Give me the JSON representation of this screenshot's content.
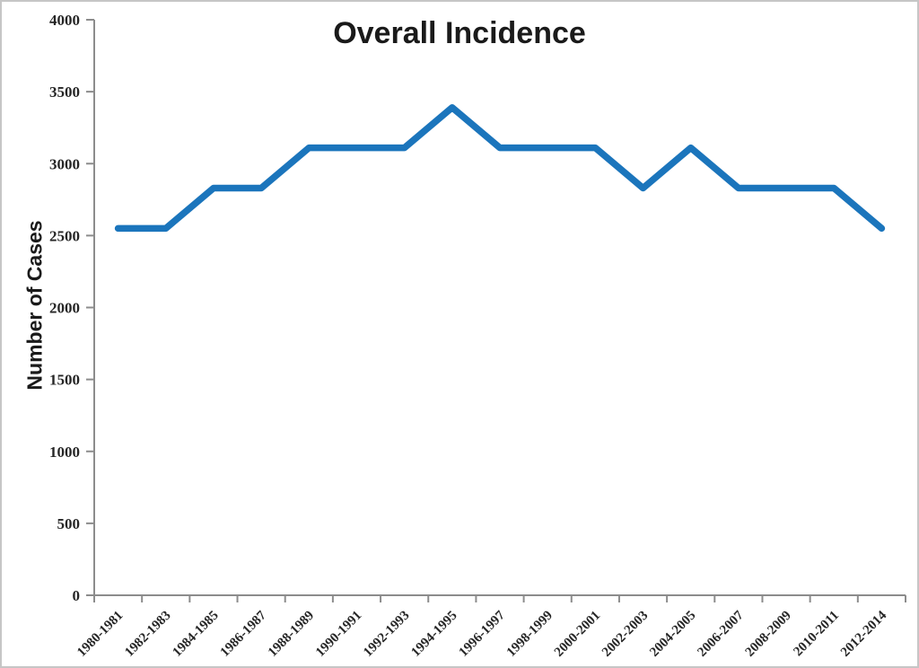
{
  "chart_data": {
    "type": "line",
    "title": "Overall Incidence",
    "ylabel": "Number of Cases",
    "xlabel": "",
    "categories": [
      "1980-1981",
      "1982-1983",
      "1984-1985",
      "1986-1987",
      "1988-1989",
      "1990-1991",
      "1992-1993",
      "1994-1995",
      "1996-1997",
      "1998-1999",
      "2000-2001",
      "2002-2003",
      "2004-2005",
      "2006-2007",
      "2008-2009",
      "2010-2011",
      "2012-2014"
    ],
    "series": [
      {
        "name": "Overall Incidence",
        "values": [
          2550,
          2550,
          2830,
          2830,
          3110,
          3110,
          3110,
          3390,
          3110,
          3110,
          3110,
          2830,
          3110,
          2830,
          2830,
          2830,
          2550
        ]
      }
    ],
    "ylim": [
      0,
      4000
    ],
    "ytick_step": 500,
    "ytick_labels": [
      "0",
      "500",
      "1000",
      "1500",
      "2000",
      "2500",
      "3000",
      "3500",
      "4000"
    ],
    "grid": false,
    "legend": "none",
    "x_label_rotation_deg": -45,
    "colors": {
      "line": "#1b75bc",
      "axis": "#8c8c8c",
      "tick_text": "#262626",
      "title_text": "#1a1a1a",
      "background": "#ffffff"
    }
  }
}
